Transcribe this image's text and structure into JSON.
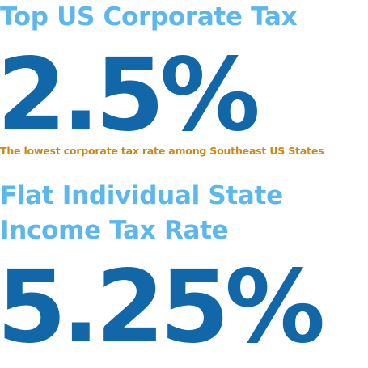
{
  "corporate_tax": {
    "heading": "Top US Corporate Tax",
    "value": "2.5%",
    "caption": "The lowest corporate tax rate among Southeast US States"
  },
  "income_tax": {
    "heading_line1": "Flat Individual State",
    "heading_line2": "Income Tax Rate",
    "value": "5.25%"
  },
  "colors": {
    "heading": "#5bb7ec",
    "value": "#1167a8",
    "caption": "#c98a12",
    "background": "#ffffff"
  }
}
